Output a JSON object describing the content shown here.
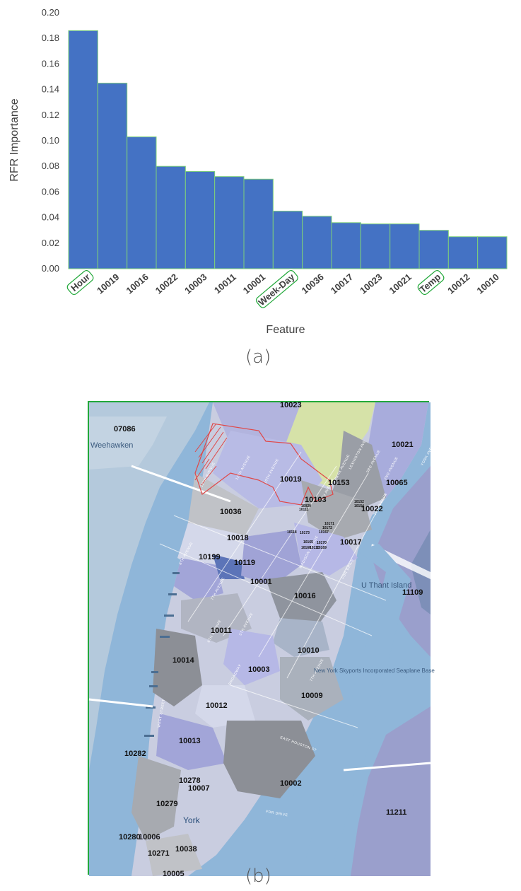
{
  "chart_data": {
    "type": "bar",
    "categories": [
      "Hour",
      "10019",
      "10016",
      "10022",
      "10003",
      "10011",
      "10001",
      "Week-Day",
      "10036",
      "10017",
      "10023",
      "10021",
      "Temp",
      "10012",
      "10010"
    ],
    "values": [
      0.186,
      0.145,
      0.103,
      0.08,
      0.076,
      0.072,
      0.07,
      0.045,
      0.041,
      0.036,
      0.035,
      0.035,
      0.03,
      0.025,
      0.025
    ],
    "highlighted": [
      "Hour",
      "Week-Day",
      "Temp"
    ],
    "xlabel": "Feature",
    "ylabel": "RFR Importance",
    "ylim": [
      0,
      0.2
    ],
    "yticks": [
      "0.00",
      "0.02",
      "0.04",
      "0.06",
      "0.08",
      "0.10",
      "0.12",
      "0.14",
      "0.16",
      "0.18",
      "0.20"
    ],
    "grid": false,
    "bar_color": "#4472c4",
    "bar_edge_color": "#7ed07a",
    "highlight_color": "#22a83a"
  },
  "captions": {
    "a": "(a)",
    "b": "(b)"
  },
  "map": {
    "places": [
      "Weehawken",
      "U Thant Island",
      "New York Skyports Incorporated Seaplane Base",
      "York"
    ],
    "zip_labels": [
      "10023",
      "07086",
      "10021",
      "10019",
      "10153",
      "10065",
      "10103",
      "10036",
      "10022",
      "10018",
      "10199",
      "10119",
      "10017",
      "10001",
      "10016",
      "11109",
      "10011",
      "10010",
      "10014",
      "10003",
      "10009",
      "10012",
      "10013",
      "10002",
      "10282",
      "10278",
      "10007",
      "10279",
      "11211",
      "10280",
      "10006",
      "10271",
      "10038",
      "10005",
      "10020",
      "10111",
      "10152",
      "10154",
      "10171",
      "10172",
      "10167",
      "10118",
      "10173",
      "10165",
      "10170",
      "10168",
      "10169",
      "10110"
    ],
    "streets": [
      "12TH AVENUE",
      "11TH AVENUE",
      "10TH AVENUE",
      "5TH AVENUE",
      "PARK AVENUE",
      "LEXINGTON AVE",
      "3RD AVENUE",
      "2ND AVENUE",
      "1ST AVENUE",
      "YORK AVENUE",
      "MADISON AVENUE",
      "FDR DRIVE",
      "8TH AVENUE",
      "7TH AVENUE",
      "6TH AVENUE",
      "BROADWAY",
      "WEST STREET",
      "EAST HOUSTON ST",
      "FDR DRIVE",
      "5TH AVENUE",
      "7TH AVENUE"
    ],
    "colors": {
      "water": "#8fb6d9",
      "park": "#d6e2a8",
      "highlight": "#e04848"
    }
  }
}
